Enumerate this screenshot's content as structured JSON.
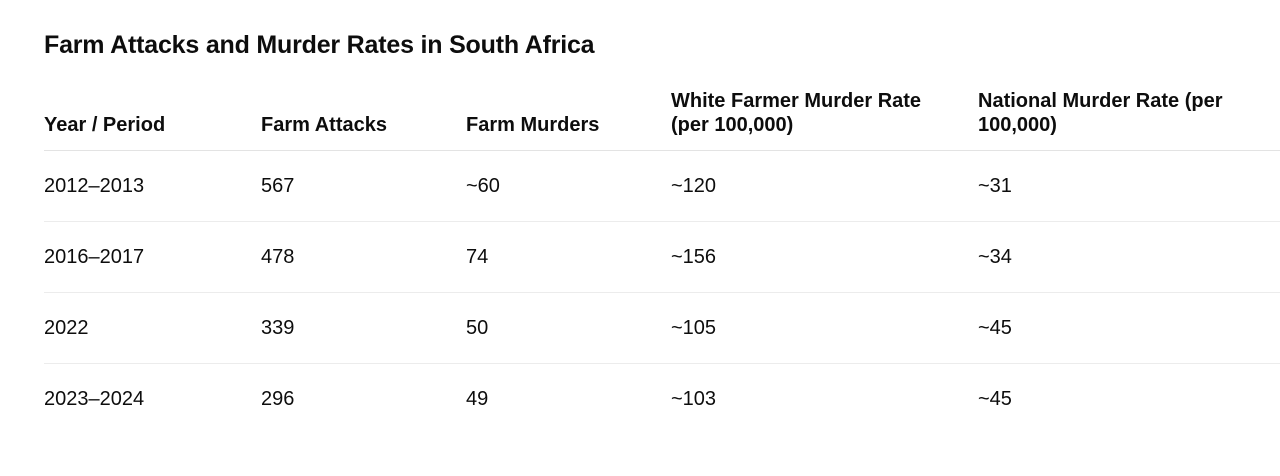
{
  "title": "Farm Attacks and Murder Rates in South Africa",
  "table": {
    "headers": [
      "Year / Period",
      "Farm Attacks",
      "Farm Murders",
      "White Farmer Murder Rate (per 100,000)",
      "National Murder Rate (per 100,000)"
    ],
    "rows": [
      [
        "2012–2013",
        "567",
        "~60",
        "~120",
        "~31"
      ],
      [
        "2016–2017",
        "478",
        "74",
        "~156",
        "~34"
      ],
      [
        "2022",
        "339",
        "50",
        "~105",
        "~45"
      ],
      [
        "2023–2024",
        "296",
        "49",
        "~103",
        "~45"
      ]
    ]
  }
}
